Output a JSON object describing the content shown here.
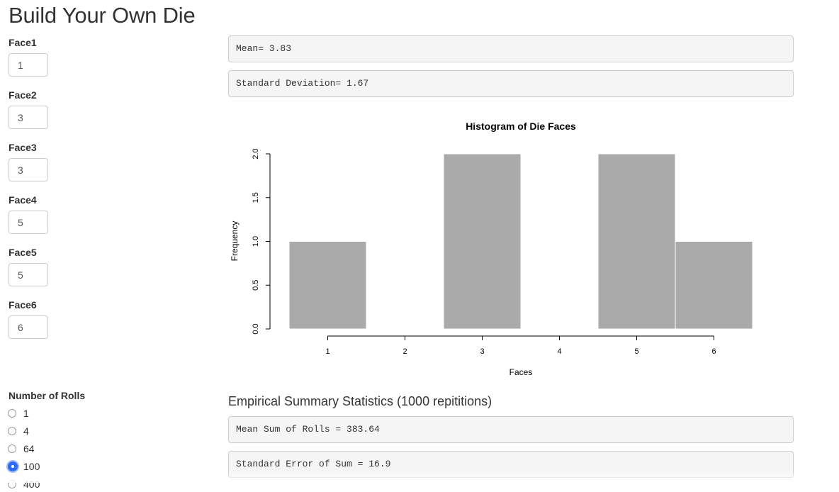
{
  "page_title": "Build Your Own Die",
  "faces": [
    {
      "label": "Face1",
      "value": "1"
    },
    {
      "label": "Face2",
      "value": "3"
    },
    {
      "label": "Face3",
      "value": "3"
    },
    {
      "label": "Face4",
      "value": "5"
    },
    {
      "label": "Face5",
      "value": "5"
    },
    {
      "label": "Face6",
      "value": "6"
    }
  ],
  "stats": {
    "mean": "Mean= 3.83",
    "sd": "Standard Deviation= 1.67"
  },
  "empirical": {
    "heading": "Empirical Summary Statistics (1000 repititions)",
    "mean_sum": "Mean Sum of Rolls = 383.64",
    "se_sum": "Standard Error of Sum = 16.9"
  },
  "rolls": {
    "label": "Number of Rolls",
    "options": [
      "1",
      "4",
      "64",
      "100",
      "400"
    ],
    "selected": "100"
  },
  "colors": {
    "bar_fill": "#aaaaaa",
    "radio_selected": "#2f6bf5",
    "stat_box_bg": "#f5f5f5"
  },
  "chart_data": {
    "type": "bar",
    "title": "Histogram of Die Faces",
    "xlabel": "Faces",
    "ylabel": "Frequency",
    "bins": [
      {
        "x0": 0.5,
        "x1": 1.5,
        "count": 1
      },
      {
        "x0": 1.5,
        "x1": 2.5,
        "count": 0
      },
      {
        "x0": 2.5,
        "x1": 3.5,
        "count": 2
      },
      {
        "x0": 3.5,
        "x1": 4.5,
        "count": 0
      },
      {
        "x0": 4.5,
        "x1": 5.5,
        "count": 2
      },
      {
        "x0": 5.5,
        "x1": 6.5,
        "count": 1
      }
    ],
    "xticks": [
      "1",
      "2",
      "3",
      "4",
      "5",
      "6"
    ],
    "yticks": [
      "0.0",
      "0.5",
      "1.0",
      "1.5",
      "2.0"
    ],
    "xlim": [
      0.5,
      6.5
    ],
    "ylim": [
      0,
      2
    ],
    "grid": false
  }
}
